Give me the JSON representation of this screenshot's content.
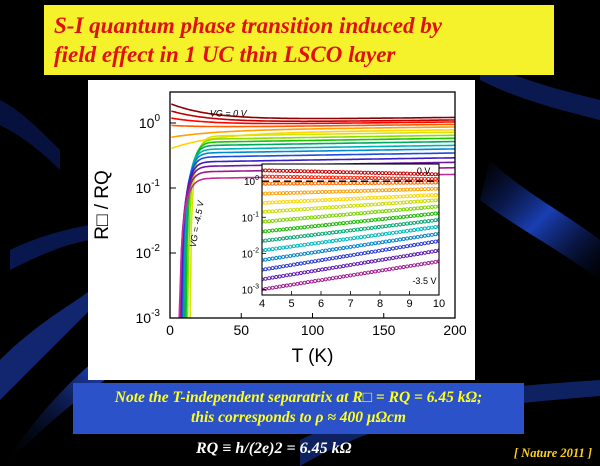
{
  "slide": {
    "title_line1": "S-I quantum phase transition induced by",
    "title_line2": "field effect in 1 UC thin LSCO layer",
    "note_line1": "Note the T-independent separatrix at R□ = RQ = 6.45 kΩ;",
    "note_line2": "this corresponds to ρ ≈ 400 μΩcm",
    "formula": "RQ ≡ h/(2e)2 = 6.45 kΩ",
    "citation": "[ Nature 2011 ]",
    "colors": {
      "title_bg": "#f5f12a",
      "title_text": "#e01010",
      "note_bg": "#2b52c8",
      "note_text": "#ffff22",
      "citation_text": "#ffd21a",
      "background": "#000000"
    }
  },
  "chart_data": [
    {
      "type": "line",
      "xlabel": "T  (K)",
      "ylabel": "R□ / RQ",
      "xlim": [
        0,
        200
      ],
      "ylim": [
        0.001,
        3
      ],
      "yscale": "log",
      "x_ticks": [
        0,
        50,
        100,
        150,
        200
      ],
      "y_ticks": [
        {
          "value": 1,
          "label": "10",
          "exp": "0"
        },
        {
          "value": 0.1,
          "label": "10",
          "exp": "-1"
        },
        {
          "value": 0.01,
          "label": "10",
          "exp": "-2"
        },
        {
          "value": 0.001,
          "label": "10",
          "exp": "-3"
        }
      ],
      "annotations": [
        {
          "text": "VG = 0 V",
          "at": [
            28,
            1.25
          ]
        },
        {
          "text": "VG = -4.5 V",
          "at": [
            18,
            0.012
          ]
        }
      ],
      "series": [
        {
          "high_T": 1.15,
          "low_T": 2.0,
          "type": "insulating",
          "color": "#8b0000"
        },
        {
          "high_T": 1.05,
          "low_T": 1.55,
          "type": "insulating",
          "color": "#c40000"
        },
        {
          "high_T": 0.98,
          "low_T": 1.2,
          "type": "insulating",
          "color": "#ff0000"
        },
        {
          "high_T": 0.9,
          "low_T": 0.92,
          "type": "separatrix",
          "color": "#ff5a00"
        },
        {
          "high_T": 0.82,
          "low_T": 0.6,
          "type": "superconducting",
          "color": "#ff9f00"
        },
        {
          "high_T": 0.74,
          "low_T": 0.4,
          "type": "superconducting",
          "color": "#ffd400"
        },
        {
          "high_T": 0.67,
          "T_c": 14,
          "type": "superconducting",
          "color": "#d6e600"
        },
        {
          "high_T": 0.6,
          "T_c": 12.5,
          "type": "superconducting",
          "color": "#8fdc00"
        },
        {
          "high_T": 0.54,
          "T_c": 11.2,
          "type": "superconducting",
          "color": "#19c400"
        },
        {
          "high_T": 0.48,
          "T_c": 10.2,
          "type": "superconducting",
          "color": "#00a860"
        },
        {
          "high_T": 0.42,
          "T_c": 9.4,
          "type": "superconducting",
          "color": "#00b0b8"
        },
        {
          "high_T": 0.37,
          "T_c": 8.8,
          "type": "superconducting",
          "color": "#008ccc"
        },
        {
          "high_T": 0.32,
          "T_c": 8.2,
          "type": "superconducting",
          "color": "#1e4ae0"
        },
        {
          "high_T": 0.27,
          "T_c": 7.6,
          "type": "superconducting",
          "color": "#3a1ec8"
        },
        {
          "high_T": 0.23,
          "T_c": 7.1,
          "type": "superconducting",
          "color": "#6b14a8"
        },
        {
          "high_T": 0.19,
          "T_c": 6.7,
          "type": "superconducting",
          "color": "#a01890"
        },
        {
          "high_T": 0.15,
          "T_c": 6.4,
          "type": "superconducting",
          "color": "#c42c9a"
        }
      ]
    },
    {
      "type": "scatter",
      "name": "inset",
      "xlim": [
        4,
        10
      ],
      "ylim": [
        0.0007,
        3
      ],
      "yscale": "log",
      "x_ticks": [
        4,
        5,
        6,
        7,
        8,
        9,
        10
      ],
      "y_ticks": [
        {
          "value": 1,
          "label": "10",
          "exp": "0"
        },
        {
          "value": 0.1,
          "label": "10",
          "exp": "-1"
        },
        {
          "value": 0.01,
          "label": "10",
          "exp": "-2"
        },
        {
          "value": 0.001,
          "label": "10",
          "exp": "-3"
        }
      ],
      "annotations": [
        {
          "text": "0 V",
          "at": [
            9.25,
            1.6
          ]
        },
        {
          "text": "-3.5 V",
          "at": [
            9.1,
            0.0014
          ]
        }
      ],
      "separatrix": 1,
      "series": [
        {
          "y4": 2.0,
          "y10": 1.55,
          "color": "#c40000"
        },
        {
          "y4": 1.35,
          "y10": 1.15,
          "color": "#ff1a00"
        },
        {
          "y4": 0.85,
          "y10": 0.92,
          "color": "#ff6a00"
        },
        {
          "y4": 0.45,
          "y10": 0.62,
          "color": "#ff9f00"
        },
        {
          "y4": 0.25,
          "y10": 0.42,
          "color": "#ffd400"
        },
        {
          "y4": 0.14,
          "y10": 0.3,
          "color": "#c8dc00"
        },
        {
          "y4": 0.075,
          "y10": 0.2,
          "color": "#7cd200"
        },
        {
          "y4": 0.04,
          "y10": 0.13,
          "color": "#1cb800"
        },
        {
          "y4": 0.022,
          "y10": 0.085,
          "color": "#00a870"
        },
        {
          "y4": 0.012,
          "y10": 0.055,
          "color": "#00b6bc"
        },
        {
          "y4": 0.0065,
          "y10": 0.035,
          "color": "#0080cc"
        },
        {
          "y4": 0.0035,
          "y10": 0.022,
          "color": "#2438d0"
        },
        {
          "y4": 0.0019,
          "y10": 0.012,
          "color": "#5a18b4"
        },
        {
          "y4": 0.001,
          "y10": 0.006,
          "color": "#a01890"
        }
      ]
    }
  ]
}
